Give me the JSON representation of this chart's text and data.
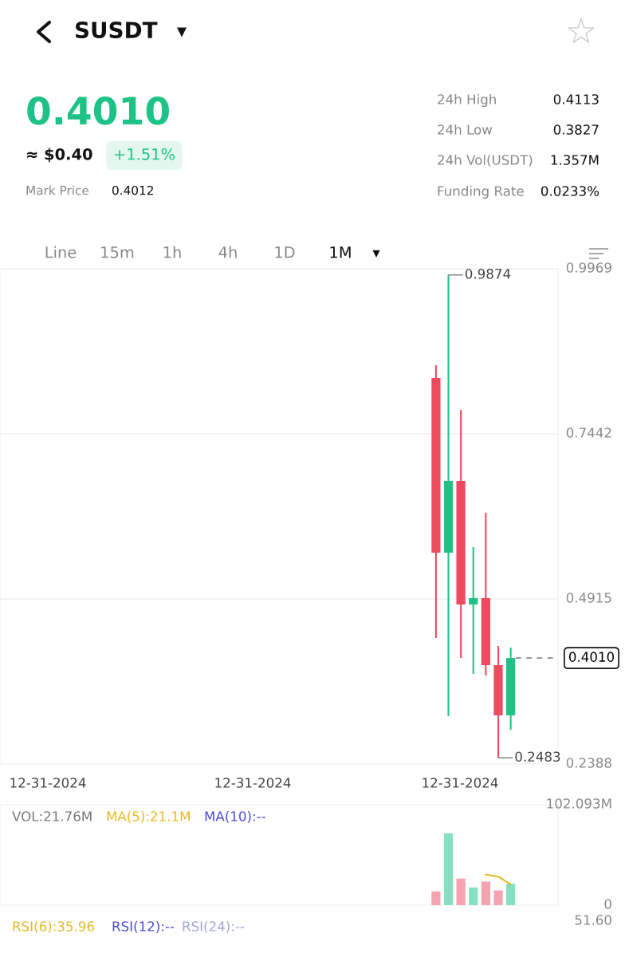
{
  "chart_data": [
    {
      "type": "other",
      "title": "SUSDT",
      "annotations": [
        "0.4010",
        "≈ $0.40",
        "+1.51%",
        "Mark Price",
        "0.4012",
        "24h High",
        "0.4113",
        "24h Low",
        "0.3827",
        "24h Vol(USDT)",
        "1.357M",
        "Funding Rate",
        "0.0233%",
        "Line",
        "15m",
        "1h",
        "4h",
        "1D",
        "1M"
      ]
    },
    {
      "type": "candlestick",
      "categories": [
        null,
        null,
        null,
        null,
        null,
        null,
        null
      ],
      "ohlc": [
        [
          0.8297,
          0.8492,
          0.4317,
          0.5623
        ],
        [
          0.5623,
          0.9874,
          0.312,
          0.6722
        ],
        [
          0.6722,
          0.7808,
          0.4012,
          0.483
        ],
        [
          0.483,
          0.5709,
          0.3768,
          0.4927
        ],
        [
          0.4927,
          0.6234,
          0.3743,
          0.3902
        ],
        [
          0.3902,
          0.4195,
          0.2483,
          0.3133
        ],
        [
          0.3133,
          0.417,
          0.2913,
          0.401
        ]
      ],
      "colors": [
        "#ef4b5e",
        "#1fc286",
        "#ef4b5e",
        "#1fc286",
        "#ef4b5e",
        "#ef4b5e",
        "#1fc286"
      ],
      "ylim": [
        0.2388,
        0.9969
      ],
      "yticks": [
        0.2388,
        0.4915,
        0.7442,
        0.9969
      ],
      "grid": "y",
      "ref_lines": [
        {
          "axis": "y",
          "value": 0.401,
          "label": "0.4010",
          "color": "#888888",
          "line_style": "dashed"
        }
      ],
      "annotations": [
        "0.9874",
        "0.2483",
        "12-31-2024",
        "12-31-2024",
        "12-31-2024"
      ]
    },
    {
      "type": "bar",
      "categories": [
        null,
        null,
        null,
        null,
        null,
        null,
        null
      ],
      "series": [
        {
          "type": "bar",
          "values": [
            14,
            73,
            27,
            18,
            24,
            15,
            21.76
          ],
          "colors": [
            "#f4a3b0",
            "#86e0c2",
            "#f4a3b0",
            "#86e0c2",
            "#f4a3b0",
            "#f4a3b0",
            "#86e0c2"
          ]
        },
        {
          "type": "line",
          "color": "#e8b923",
          "values": [
            null,
            null,
            null,
            null,
            31,
            29,
            21.1
          ]
        }
      ],
      "ylim": [
        0,
        102.093
      ],
      "yticks": [
        {
          "value": 0,
          "label": "0"
        },
        {
          "value": 102.093,
          "label": "102.093M"
        }
      ],
      "tick_labels": "y",
      "annotations": [
        "VOL:21.76M",
        "MA(5):21.1M",
        "MA(10):--"
      ]
    },
    {
      "type": "other",
      "annotations": [
        "RSI(6):35.96",
        "RSI(12):--",
        "RSI(24):--",
        "51.60"
      ]
    }
  ]
}
